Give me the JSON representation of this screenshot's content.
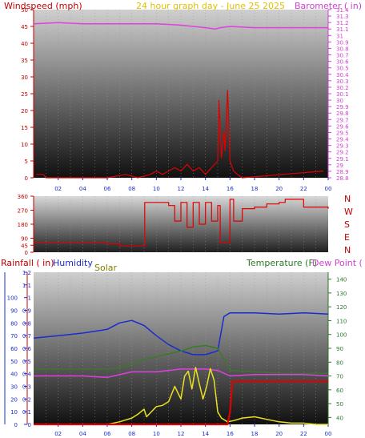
{
  "header": {
    "windspeed_label": "Windspeed (mph)",
    "center_title": "24 hour graph day - June 25 2025",
    "barometer_label": "Barometer ( in)"
  },
  "mid": {
    "compass": [
      "N",
      "W",
      "S",
      "E",
      "N"
    ]
  },
  "bottom": {
    "rainfall_label": "Rainfall ( in)",
    "humidity_label": "Humidity",
    "solar_label": "Solar",
    "temperature_label": "Temperature (F)",
    "dewpoint_label": "Dew Point ("
  },
  "colors": {
    "wind": "#e00000",
    "gust": "#008000",
    "barometer": "#e040e0",
    "humidity": "#1a2ccc",
    "temperature": "#3a7a2a",
    "dewpoint": "#e040e0",
    "solar": "#e8e020",
    "rain": "#e00000",
    "title": "#e0c000"
  },
  "chart_data": [
    {
      "type": "line",
      "name": "wind",
      "xticks": [
        "02",
        "04",
        "06",
        "08",
        "10",
        "12",
        "14",
        "16",
        "18",
        "20",
        "22",
        "00"
      ],
      "yleft_ticks": [
        0,
        5,
        10,
        15,
        20,
        25,
        30,
        35,
        40,
        45,
        50
      ],
      "yright_ticks": [
        28.8,
        28.9,
        29,
        29.1,
        29.2,
        29.3,
        29.4,
        29.5,
        29.6,
        29.7,
        29.8,
        29.9,
        30,
        30.1,
        30.2,
        30.3,
        30.4,
        30.5,
        30.6,
        30.7,
        30.8,
        30.9,
        31,
        31.1,
        31.2,
        31.3,
        31.4
      ],
      "ylim_left": [
        0,
        50
      ],
      "ylim_right": [
        28.8,
        31.4
      ],
      "xlim": [
        0,
        24
      ],
      "series": [
        {
          "key": "barometer",
          "axis": "right",
          "x": [
            0,
            2,
            4,
            6,
            8,
            10,
            12,
            13,
            14,
            14.8,
            15.2,
            16,
            18,
            20,
            22,
            23.5,
            24
          ],
          "values": [
            31.18,
            31.2,
            31.18,
            31.18,
            31.18,
            31.18,
            31.16,
            31.14,
            31.12,
            31.1,
            31.12,
            31.14,
            31.12,
            31.12,
            31.12,
            31.12,
            31.12
          ]
        },
        {
          "key": "wind",
          "axis": "left",
          "x": [
            0.2,
            0.8,
            1,
            6,
            7.5,
            8.5,
            9.5,
            10,
            10.5,
            11,
            11.5,
            12,
            12.5,
            13,
            13.5,
            14,
            14.5,
            15,
            15.1,
            15.3,
            15.5,
            15.6,
            15.8,
            16,
            16.3,
            16.6,
            17,
            23.6
          ],
          "values": [
            1,
            1,
            0,
            0,
            1,
            0,
            1,
            2,
            1,
            2,
            3,
            2,
            4,
            2,
            3,
            1,
            3,
            5,
            23,
            6,
            14,
            8,
            26,
            5,
            2,
            1,
            0,
            2
          ]
        }
      ]
    },
    {
      "type": "line",
      "name": "wind_direction",
      "yticks": [
        0,
        45,
        90,
        180,
        270,
        360
      ],
      "ylim": [
        0,
        360
      ],
      "xlim": [
        0,
        24
      ],
      "x": [
        0,
        3,
        6,
        7,
        8,
        9,
        9.05,
        10,
        11,
        11.5,
        12,
        12.5,
        13,
        13.5,
        14,
        14.5,
        15,
        15.2,
        16,
        16.3,
        17,
        18,
        19,
        20,
        20.5,
        21,
        22,
        24
      ],
      "values": [
        60,
        60,
        55,
        40,
        40,
        40,
        320,
        320,
        300,
        200,
        320,
        160,
        320,
        180,
        320,
        200,
        300,
        60,
        340,
        200,
        280,
        290,
        310,
        320,
        340,
        340,
        290,
        280
      ]
    },
    {
      "type": "line",
      "name": "weather",
      "xticks": [
        "02",
        "04",
        "06",
        "08",
        "10",
        "12",
        "14",
        "16",
        "18",
        "20",
        "22",
        "00"
      ],
      "yleft_ticks": [
        0,
        0.1,
        0.2,
        0.3,
        0.4,
        0.5,
        0.6,
        0.7,
        0.8,
        0.9,
        1,
        1.1,
        1.2
      ],
      "yleft_outer_ticks": [
        0,
        10,
        20,
        30,
        40,
        50,
        60,
        70,
        80,
        90,
        100
      ],
      "yright_ticks": [
        40,
        50,
        60,
        70,
        80,
        90,
        100,
        110,
        120,
        130,
        140
      ],
      "ylim_left": [
        0,
        1.2
      ],
      "ylim_right": [
        35,
        145
      ],
      "xlim": [
        0,
        24
      ],
      "series": [
        {
          "key": "humidity",
          "axis": "outer",
          "x": [
            0,
            2,
            4,
            6,
            7,
            8,
            9,
            10,
            11,
            12,
            13,
            14,
            15,
            15.5,
            16,
            18,
            20,
            22,
            24
          ],
          "values": [
            68,
            70,
            72,
            75,
            80,
            82,
            78,
            70,
            63,
            58,
            55,
            55,
            58,
            85,
            88,
            88,
            87,
            88,
            87
          ]
        },
        {
          "key": "temperature",
          "axis": "right",
          "x": [
            0,
            2,
            4,
            6,
            7,
            8,
            9,
            10,
            11,
            12,
            13,
            14,
            15,
            15.5,
            16,
            18,
            20,
            22,
            24
          ],
          "values": [
            75,
            75,
            75,
            75,
            76,
            79,
            82,
            84,
            86,
            88,
            91,
            92,
            90,
            82,
            74,
            73,
            72,
            72,
            72
          ]
        },
        {
          "key": "dewpoint",
          "axis": "right",
          "x": [
            0,
            2,
            4,
            6,
            7,
            8,
            9,
            10,
            11,
            12,
            13,
            14,
            15,
            16,
            18,
            20,
            22,
            24
          ],
          "values": [
            70,
            70,
            70,
            69,
            71,
            73,
            73,
            73,
            74,
            75,
            75,
            75,
            74,
            70,
            71,
            71,
            71,
            70
          ]
        },
        {
          "key": "solar",
          "axis": "left",
          "x": [
            6,
            7,
            8,
            8.5,
            9,
            9.2,
            10,
            10.5,
            11,
            11.5,
            12,
            12.3,
            12.6,
            12.9,
            13.2,
            13.5,
            13.8,
            14.1,
            14.4,
            14.7,
            15,
            15.3,
            15.8,
            16.3,
            17,
            18,
            19,
            20,
            21,
            22,
            23,
            24
          ],
          "values": [
            0,
            0.02,
            0.05,
            0.08,
            0.12,
            0.06,
            0.14,
            0.15,
            0.18,
            0.3,
            0.2,
            0.38,
            0.42,
            0.28,
            0.45,
            0.32,
            0.2,
            0.3,
            0.44,
            0.35,
            0.1,
            0.05,
            0.02,
            0.03,
            0.05,
            0.06,
            0.04,
            0.02,
            0.01,
            0.01,
            0,
            0
          ]
        },
        {
          "key": "rain",
          "axis": "left",
          "x": [
            0,
            15.8,
            16,
            16.2,
            24
          ],
          "values": [
            0,
            0,
            0.1,
            0.34,
            0.34
          ]
        }
      ]
    }
  ]
}
